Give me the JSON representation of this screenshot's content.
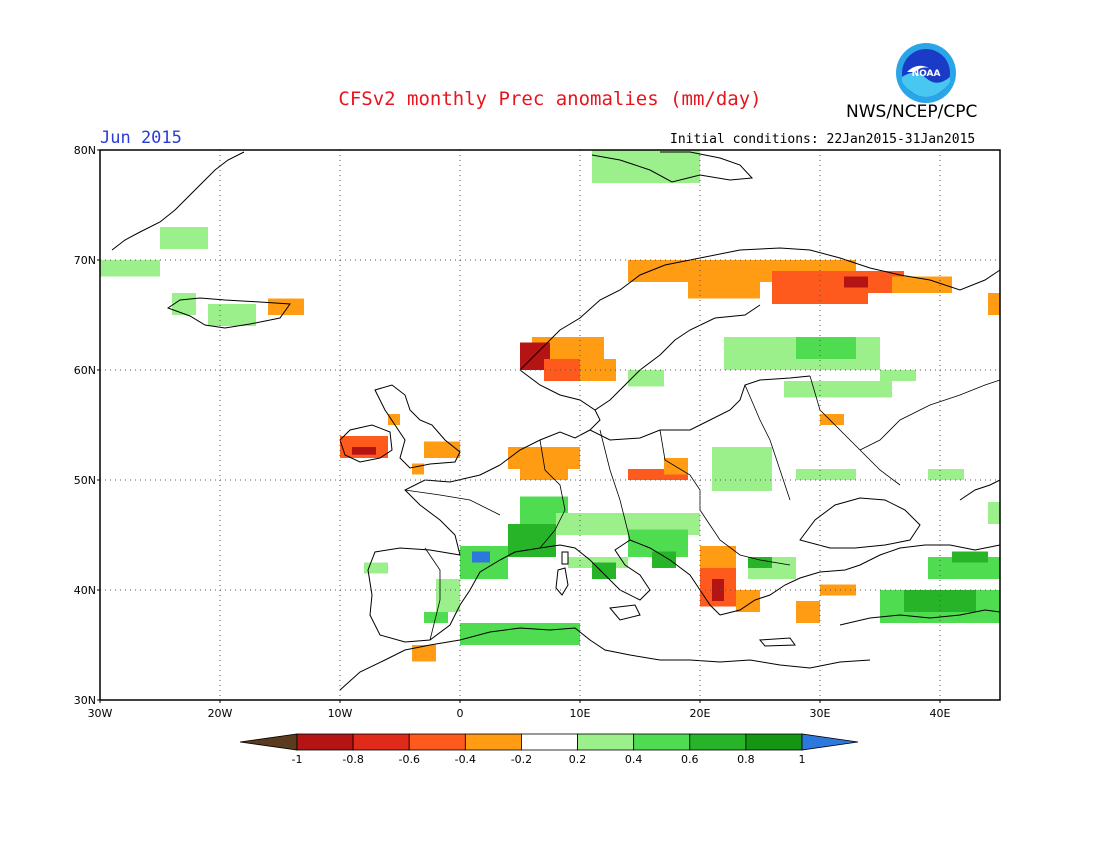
{
  "header": {
    "title": "CFSv2 monthly Prec anomalies (mm/day)",
    "organization": "NWS/NCEP/CPC",
    "period": "Jun 2015",
    "initial_conditions": "Initial conditions: 22Jan2015-31Jan2015",
    "logo_text": "NOAA"
  },
  "map": {
    "lat_range": [
      30,
      80
    ],
    "lon_range": [
      -30,
      45
    ],
    "lat_labels": [
      "30N",
      "40N",
      "50N",
      "60N",
      "70N",
      "80N"
    ],
    "lon_labels": [
      "30W",
      "20W",
      "10W",
      "0",
      "10E",
      "20E",
      "30E",
      "40E"
    ]
  },
  "colorbar": {
    "labels": [
      "-1",
      "-0.8",
      "-0.6",
      "-0.4",
      "-0.2",
      "0.2",
      "0.4",
      "0.6",
      "0.8",
      "1"
    ],
    "colors": [
      "#5c3a1e",
      "#b41414",
      "#e02a1a",
      "#ff5a1e",
      "#ff9c14",
      "#ffffff",
      "#9cf08c",
      "#50dc50",
      "#28b428",
      "#149614",
      "#2d78dc"
    ]
  },
  "chart_data": {
    "type": "heatmap",
    "colors": {
      "-0.9": "#b41414",
      "-0.7": "#e02a1a",
      "-0.5": "#ff5a1e",
      "-0.3": "#ff9c14",
      "0.3": "#9cf08c",
      "0.5": "#50dc50",
      "0.7": "#28b428",
      "0.9": "#149614",
      "1.1": "#2d78dc"
    },
    "regions": [
      {
        "lon": [
          6,
          12
        ],
        "lat": [
          61,
          63
        ],
        "value": -0.3
      },
      {
        "lon": [
          5,
          7.5
        ],
        "lat": [
          60,
          62.5
        ],
        "value": -0.9
      },
      {
        "lon": [
          7,
          10
        ],
        "lat": [
          59,
          61
        ],
        "value": -0.5
      },
      {
        "lon": [
          10,
          13
        ],
        "lat": [
          59,
          61
        ],
        "value": -0.3
      },
      {
        "lon": [
          14,
          33
        ],
        "lat": [
          68,
          70
        ],
        "value": -0.3
      },
      {
        "lon": [
          19,
          25
        ],
        "lat": [
          66.5,
          68.5
        ],
        "value": -0.3
      },
      {
        "lon": [
          26,
          34
        ],
        "lat": [
          66,
          69
        ],
        "value": -0.5
      },
      {
        "lon": [
          31,
          37
        ],
        "lat": [
          67,
          69
        ],
        "value": -0.5
      },
      {
        "lon": [
          32,
          34
        ],
        "lat": [
          67.5,
          68.5
        ],
        "value": -0.9
      },
      {
        "lon": [
          36,
          41
        ],
        "lat": [
          67,
          68.5
        ],
        "value": -0.3
      },
      {
        "lon": [
          44,
          45
        ],
        "lat": [
          65,
          67
        ],
        "value": -0.3
      },
      {
        "lon": [
          -16,
          -13
        ],
        "lat": [
          65,
          66.5
        ],
        "value": -0.3
      },
      {
        "lon": [
          -10,
          -6
        ],
        "lat": [
          52,
          54
        ],
        "value": -0.5
      },
      {
        "lon": [
          -9,
          -7
        ],
        "lat": [
          52.3,
          53
        ],
        "value": -0.9
      },
      {
        "lon": [
          -6,
          -5
        ],
        "lat": [
          55,
          56
        ],
        "value": -0.3
      },
      {
        "lon": [
          -3,
          0
        ],
        "lat": [
          52,
          53.5
        ],
        "value": -0.3
      },
      {
        "lon": [
          -4,
          -3
        ],
        "lat": [
          50.5,
          51.5
        ],
        "value": -0.3
      },
      {
        "lon": [
          4,
          10
        ],
        "lat": [
          51,
          53
        ],
        "value": -0.3
      },
      {
        "lon": [
          5,
          9
        ],
        "lat": [
          50,
          51.5
        ],
        "value": -0.3
      },
      {
        "lon": [
          14,
          19
        ],
        "lat": [
          50,
          51
        ],
        "value": -0.5
      },
      {
        "lon": [
          17,
          19
        ],
        "lat": [
          50.5,
          52
        ],
        "value": -0.3
      },
      {
        "lon": [
          20,
          23
        ],
        "lat": [
          42,
          44
        ],
        "value": -0.3
      },
      {
        "lon": [
          20,
          23
        ],
        "lat": [
          38.5,
          42
        ],
        "value": -0.5
      },
      {
        "lon": [
          21,
          22
        ],
        "lat": [
          39,
          41
        ],
        "value": -0.9
      },
      {
        "lon": [
          23,
          25
        ],
        "lat": [
          38,
          40
        ],
        "value": -0.3
      },
      {
        "lon": [
          28,
          30
        ],
        "lat": [
          37,
          39
        ],
        "value": -0.3
      },
      {
        "lon": [
          30,
          33
        ],
        "lat": [
          39.5,
          40.5
        ],
        "value": -0.3
      },
      {
        "lon": [
          30,
          32
        ],
        "lat": [
          55,
          56
        ],
        "value": -0.3
      },
      {
        "lon": [
          -4,
          -2
        ],
        "lat": [
          33.5,
          35
        ],
        "value": -0.3
      },
      {
        "lon": [
          -30,
          -25
        ],
        "lat": [
          68.5,
          70
        ],
        "value": 0.3
      },
      {
        "lon": [
          -25,
          -21
        ],
        "lat": [
          71,
          73
        ],
        "value": 0.3
      },
      {
        "lon": [
          -24,
          -22
        ],
        "lat": [
          65,
          67
        ],
        "value": 0.3
      },
      {
        "lon": [
          -21,
          -17
        ],
        "lat": [
          64,
          66
        ],
        "value": 0.3
      },
      {
        "lon": [
          11,
          20
        ],
        "lat": [
          77,
          80
        ],
        "value": 0.3
      },
      {
        "lon": [
          22,
          35
        ],
        "lat": [
          60,
          63
        ],
        "value": 0.3
      },
      {
        "lon": [
          28,
          33
        ],
        "lat": [
          61,
          63
        ],
        "value": 0.5
      },
      {
        "lon": [
          35,
          38
        ],
        "lat": [
          59,
          60
        ],
        "value": 0.3
      },
      {
        "lon": [
          27,
          36
        ],
        "lat": [
          57.5,
          59
        ],
        "value": 0.3
      },
      {
        "lon": [
          14,
          17
        ],
        "lat": [
          58.5,
          60
        ],
        "value": 0.3
      },
      {
        "lon": [
          21,
          26
        ],
        "lat": [
          49,
          53
        ],
        "value": 0.3
      },
      {
        "lon": [
          28,
          33
        ],
        "lat": [
          50,
          51
        ],
        "value": 0.3
      },
      {
        "lon": [
          5,
          9
        ],
        "lat": [
          45,
          48.5
        ],
        "value": 0.5
      },
      {
        "lon": [
          4,
          8
        ],
        "lat": [
          43,
          46
        ],
        "value": 0.7
      },
      {
        "lon": [
          8,
          20
        ],
        "lat": [
          45,
          47
        ],
        "value": 0.3
      },
      {
        "lon": [
          14,
          19
        ],
        "lat": [
          43,
          45.5
        ],
        "value": 0.5
      },
      {
        "lon": [
          16,
          18
        ],
        "lat": [
          42,
          43.5
        ],
        "value": 0.7
      },
      {
        "lon": [
          0,
          4
        ],
        "lat": [
          41,
          44
        ],
        "value": 0.5
      },
      {
        "lon": [
          1,
          2.5
        ],
        "lat": [
          42.5,
          43.5
        ],
        "value": 1.1
      },
      {
        "lon": [
          -2,
          0
        ],
        "lat": [
          38,
          41
        ],
        "value": 0.3
      },
      {
        "lon": [
          -3,
          -1
        ],
        "lat": [
          37,
          38
        ],
        "value": 0.5
      },
      {
        "lon": [
          -8,
          -6
        ],
        "lat": [
          41.5,
          42.5
        ],
        "value": 0.3
      },
      {
        "lon": [
          0,
          10
        ],
        "lat": [
          35,
          37
        ],
        "value": 0.5
      },
      {
        "lon": [
          9,
          14
        ],
        "lat": [
          42,
          43
        ],
        "value": 0.3
      },
      {
        "lon": [
          11,
          13
        ],
        "lat": [
          41,
          42.5
        ],
        "value": 0.7
      },
      {
        "lon": [
          24,
          28
        ],
        "lat": [
          41,
          43
        ],
        "value": 0.3
      },
      {
        "lon": [
          24,
          26
        ],
        "lat": [
          42,
          43
        ],
        "value": 0.7
      },
      {
        "lon": [
          35,
          45
        ],
        "lat": [
          37,
          40
        ],
        "value": 0.5
      },
      {
        "lon": [
          37,
          43
        ],
        "lat": [
          38,
          40
        ],
        "value": 0.7
      },
      {
        "lon": [
          39,
          45
        ],
        "lat": [
          41,
          43
        ],
        "value": 0.5
      },
      {
        "lon": [
          41,
          44
        ],
        "lat": [
          42.5,
          43.5
        ],
        "value": 0.7
      },
      {
        "lon": [
          39,
          42
        ],
        "lat": [
          50,
          51
        ],
        "value": 0.3
      },
      {
        "lon": [
          44,
          45
        ],
        "lat": [
          46,
          48
        ],
        "value": 0.3
      }
    ]
  }
}
